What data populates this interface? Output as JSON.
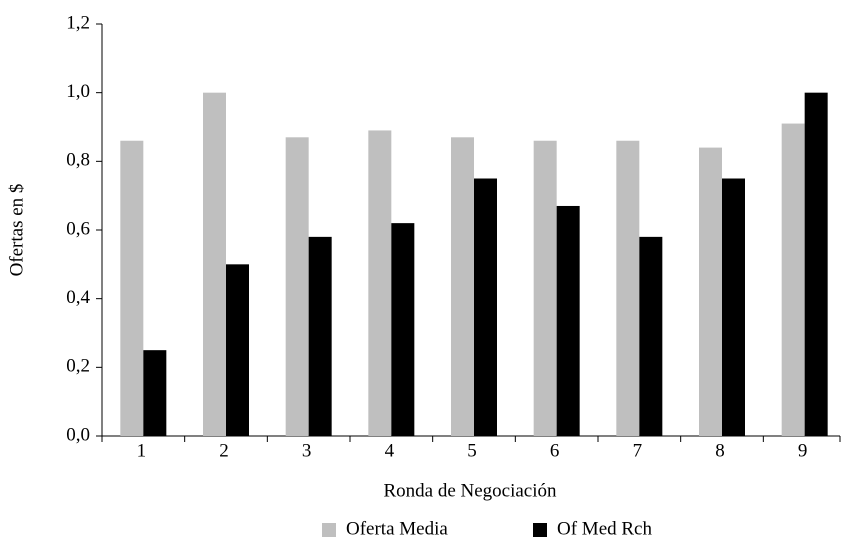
{
  "chart_data": {
    "type": "bar",
    "categories": [
      "1",
      "2",
      "3",
      "4",
      "5",
      "6",
      "7",
      "8",
      "9"
    ],
    "series": [
      {
        "name": "Oferta Media",
        "color": "#bfbfbf",
        "values": [
          0.86,
          1.0,
          0.87,
          0.89,
          0.87,
          0.86,
          0.86,
          0.84,
          0.91
        ]
      },
      {
        "name": "Of Med Rch",
        "color": "#000000",
        "values": [
          0.25,
          0.5,
          0.58,
          0.62,
          0.75,
          0.67,
          0.58,
          0.75,
          1.0
        ]
      }
    ],
    "x_label": "Ronda de Negociación",
    "y_label": "Ofertas en $",
    "ylim": [
      0,
      1.2
    ],
    "yticks": [
      {
        "value": 0,
        "label": "0,0"
      },
      {
        "value": 0.2,
        "label": "0,2"
      },
      {
        "value": 0.4,
        "label": "0,4"
      },
      {
        "value": 0.6,
        "label": "0,6"
      },
      {
        "value": 0.8,
        "label": "0,8"
      },
      {
        "value": 1.0,
        "label": "1,0"
      },
      {
        "value": 1.2,
        "label": "1,2"
      }
    ],
    "legend": "bottom"
  }
}
